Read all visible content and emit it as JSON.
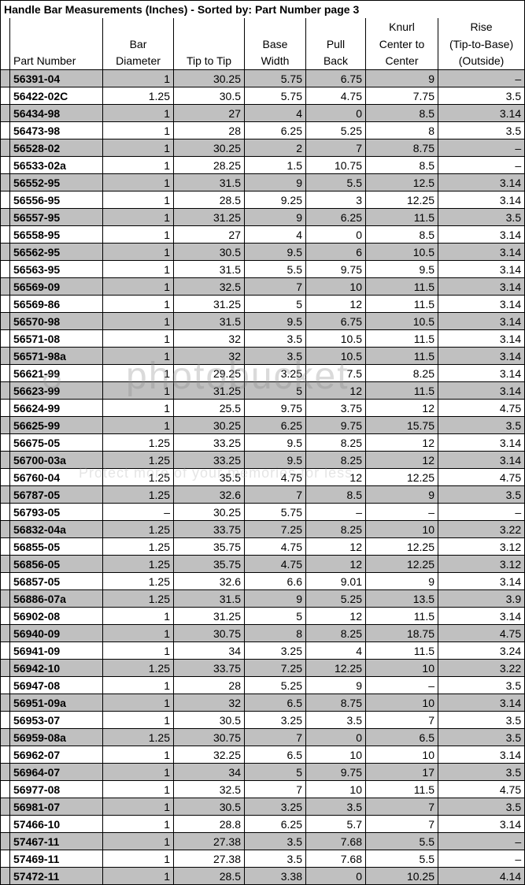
{
  "title": "Handle Bar Measurements (Inches)  - Sorted by:  Part Number page 3",
  "headers": {
    "h1": [
      "",
      "",
      "",
      "",
      "",
      "",
      "Knurl",
      "Rise"
    ],
    "h2": [
      "",
      "",
      "Bar",
      "",
      "Base",
      "Pull",
      "Center to",
      "(Tip-to-Base)"
    ],
    "h3": [
      "",
      "Part Number",
      "Diameter",
      "Tip to Tip",
      "Width",
      "Back",
      "Center",
      "(Outside)"
    ]
  },
  "columns": [
    "part",
    "dia",
    "tip",
    "base",
    "pull",
    "knurl",
    "rise"
  ],
  "rows": [
    {
      "shade": true,
      "part": "56391-04",
      "dia": "1",
      "tip": "30.25",
      "base": "5.75",
      "pull": "6.75",
      "knurl": "9",
      "rise": "–"
    },
    {
      "shade": false,
      "part": "56422-02C",
      "dia": "1.25",
      "tip": "30.5",
      "base": "5.75",
      "pull": "4.75",
      "knurl": "7.75",
      "rise": "3.5"
    },
    {
      "shade": true,
      "part": "56434-98",
      "dia": "1",
      "tip": "27",
      "base": "4",
      "pull": "0",
      "knurl": "8.5",
      "rise": "3.14"
    },
    {
      "shade": false,
      "part": "56473-98",
      "dia": "1",
      "tip": "28",
      "base": "6.25",
      "pull": "5.25",
      "knurl": "8",
      "rise": "3.5"
    },
    {
      "shade": true,
      "part": "56528-02",
      "dia": "1",
      "tip": "30.25",
      "base": "2",
      "pull": "7",
      "knurl": "8.75",
      "rise": "–"
    },
    {
      "shade": false,
      "part": "56533-02a",
      "dia": "1",
      "tip": "28.25",
      "base": "1.5",
      "pull": "10.75",
      "knurl": "8.5",
      "rise": "–"
    },
    {
      "shade": true,
      "part": "56552-95",
      "dia": "1",
      "tip": "31.5",
      "base": "9",
      "pull": "5.5",
      "knurl": "12.5",
      "rise": "3.14"
    },
    {
      "shade": false,
      "part": "56556-95",
      "dia": "1",
      "tip": "28.5",
      "base": "9.25",
      "pull": "3",
      "knurl": "12.25",
      "rise": "3.14"
    },
    {
      "shade": true,
      "part": "56557-95",
      "dia": "1",
      "tip": "31.25",
      "base": "9",
      "pull": "6.25",
      "knurl": "11.5",
      "rise": "3.5"
    },
    {
      "shade": false,
      "part": "56558-95",
      "dia": "1",
      "tip": "27",
      "base": "4",
      "pull": "0",
      "knurl": "8.5",
      "rise": "3.14"
    },
    {
      "shade": true,
      "part": "56562-95",
      "dia": "1",
      "tip": "30.5",
      "base": "9.5",
      "pull": "6",
      "knurl": "10.5",
      "rise": "3.14"
    },
    {
      "shade": false,
      "part": "56563-95",
      "dia": "1",
      "tip": "31.5",
      "base": "5.5",
      "pull": "9.75",
      "knurl": "9.5",
      "rise": "3.14"
    },
    {
      "shade": true,
      "part": "56569-09",
      "dia": "1",
      "tip": "32.5",
      "base": "7",
      "pull": "10",
      "knurl": "11.5",
      "rise": "3.14"
    },
    {
      "shade": false,
      "part": "56569-86",
      "dia": "1",
      "tip": "31.25",
      "base": "5",
      "pull": "12",
      "knurl": "11.5",
      "rise": "3.14"
    },
    {
      "shade": true,
      "part": "56570-98",
      "dia": "1",
      "tip": "31.5",
      "base": "9.5",
      "pull": "6.75",
      "knurl": "10.5",
      "rise": "3.14"
    },
    {
      "shade": false,
      "part": "56571-08",
      "dia": "1",
      "tip": "32",
      "base": "3.5",
      "pull": "10.5",
      "knurl": "11.5",
      "rise": "3.14"
    },
    {
      "shade": true,
      "part": "56571-98a",
      "dia": "1",
      "tip": "32",
      "base": "3.5",
      "pull": "10.5",
      "knurl": "11.5",
      "rise": "3.14"
    },
    {
      "shade": false,
      "part": "56621-99",
      "dia": "1",
      "tip": "29.25",
      "base": "3.25",
      "pull": "7.5",
      "knurl": "8.25",
      "rise": "3.14"
    },
    {
      "shade": true,
      "part": "56623-99",
      "dia": "1",
      "tip": "31.25",
      "base": "5",
      "pull": "12",
      "knurl": "11.5",
      "rise": "3.14"
    },
    {
      "shade": false,
      "part": "56624-99",
      "dia": "1",
      "tip": "25.5",
      "base": "9.75",
      "pull": "3.75",
      "knurl": "12",
      "rise": "4.75"
    },
    {
      "shade": true,
      "part": "56625-99",
      "dia": "1",
      "tip": "30.25",
      "base": "6.25",
      "pull": "9.75",
      "knurl": "15.75",
      "rise": "3.5"
    },
    {
      "shade": false,
      "part": "56675-05",
      "dia": "1.25",
      "tip": "33.25",
      "base": "9.5",
      "pull": "8.25",
      "knurl": "12",
      "rise": "3.14"
    },
    {
      "shade": true,
      "part": "56700-03a",
      "dia": "1.25",
      "tip": "33.25",
      "base": "9.5",
      "pull": "8.25",
      "knurl": "12",
      "rise": "3.14"
    },
    {
      "shade": false,
      "part": "56760-04",
      "dia": "1.25",
      "tip": "35.5",
      "base": "4.75",
      "pull": "12",
      "knurl": "12.25",
      "rise": "4.75"
    },
    {
      "shade": true,
      "part": "56787-05",
      "dia": "1.25",
      "tip": "32.6",
      "base": "7",
      "pull": "8.5",
      "knurl": "9",
      "rise": "3.5"
    },
    {
      "shade": false,
      "part": "56793-05",
      "dia": "–",
      "tip": "30.25",
      "base": "5.75",
      "pull": "–",
      "knurl": "–",
      "rise": "–"
    },
    {
      "shade": true,
      "part": "56832-04a",
      "dia": "1.25",
      "tip": "33.75",
      "base": "7.25",
      "pull": "8.25",
      "knurl": "10",
      "rise": "3.22"
    },
    {
      "shade": false,
      "part": "56855-05",
      "dia": "1.25",
      "tip": "35.75",
      "base": "4.75",
      "pull": "12",
      "knurl": "12.25",
      "rise": "3.12"
    },
    {
      "shade": true,
      "part": "56856-05",
      "dia": "1.25",
      "tip": "35.75",
      "base": "4.75",
      "pull": "12",
      "knurl": "12.25",
      "rise": "3.12"
    },
    {
      "shade": false,
      "part": "56857-05",
      "dia": "1.25",
      "tip": "32.6",
      "base": "6.6",
      "pull": "9.01",
      "knurl": "9",
      "rise": "3.14"
    },
    {
      "shade": true,
      "part": "56886-07a",
      "dia": "1.25",
      "tip": "31.5",
      "base": "9",
      "pull": "5.25",
      "knurl": "13.5",
      "rise": "3.9"
    },
    {
      "shade": false,
      "part": "56902-08",
      "dia": "1",
      "tip": "31.25",
      "base": "5",
      "pull": "12",
      "knurl": "11.5",
      "rise": "3.14"
    },
    {
      "shade": true,
      "part": "56940-09",
      "dia": "1",
      "tip": "30.75",
      "base": "8",
      "pull": "8.25",
      "knurl": "18.75",
      "rise": "4.75"
    },
    {
      "shade": false,
      "part": "56941-09",
      "dia": "1",
      "tip": "34",
      "base": "3.25",
      "pull": "4",
      "knurl": "11.5",
      "rise": "3.24"
    },
    {
      "shade": true,
      "part": "56942-10",
      "dia": "1.25",
      "tip": "33.75",
      "base": "7.25",
      "pull": "12.25",
      "knurl": "10",
      "rise": "3.22"
    },
    {
      "shade": false,
      "part": "56947-08",
      "dia": "1",
      "tip": "28",
      "base": "5.25",
      "pull": "9",
      "knurl": "–",
      "rise": "3.5"
    },
    {
      "shade": true,
      "part": "56951-09a",
      "dia": "1",
      "tip": "32",
      "base": "6.5",
      "pull": "8.75",
      "knurl": "10",
      "rise": "3.14"
    },
    {
      "shade": false,
      "part": "56953-07",
      "dia": "1",
      "tip": "30.5",
      "base": "3.25",
      "pull": "3.5",
      "knurl": "7",
      "rise": "3.5"
    },
    {
      "shade": true,
      "part": "56959-08a",
      "dia": "1.25",
      "tip": "30.75",
      "base": "7",
      "pull": "0",
      "knurl": "6.5",
      "rise": "3.5"
    },
    {
      "shade": false,
      "part": "56962-07",
      "dia": "1",
      "tip": "32.25",
      "base": "6.5",
      "pull": "10",
      "knurl": "10",
      "rise": "3.14"
    },
    {
      "shade": true,
      "part": "56964-07",
      "dia": "1",
      "tip": "34",
      "base": "5",
      "pull": "9.75",
      "knurl": "17",
      "rise": "3.5"
    },
    {
      "shade": false,
      "part": "56977-08",
      "dia": "1",
      "tip": "32.5",
      "base": "7",
      "pull": "10",
      "knurl": "11.5",
      "rise": "4.75"
    },
    {
      "shade": true,
      "part": "56981-07",
      "dia": "1",
      "tip": "30.5",
      "base": "3.25",
      "pull": "3.5",
      "knurl": "7",
      "rise": "3.5"
    },
    {
      "shade": false,
      "part": "57466-10",
      "dia": "1",
      "tip": "28.8",
      "base": "6.25",
      "pull": "5.7",
      "knurl": "7",
      "rise": "3.14"
    },
    {
      "shade": true,
      "part": "57467-11",
      "dia": "1",
      "tip": "27.38",
      "base": "3.5",
      "pull": "7.68",
      "knurl": "5.5",
      "rise": "–"
    },
    {
      "shade": false,
      "part": "57469-11",
      "dia": "1",
      "tip": "27.38",
      "base": "3.5",
      "pull": "7.68",
      "knurl": "5.5",
      "rise": "–"
    },
    {
      "shade": true,
      "part": "57472-11",
      "dia": "1",
      "tip": "28.5",
      "base": "3.38",
      "pull": "0",
      "knurl": "10.25",
      "rise": "4.14"
    }
  ],
  "watermark": {
    "main": "photobucket",
    "sub": "Protect more of your memories for less"
  }
}
